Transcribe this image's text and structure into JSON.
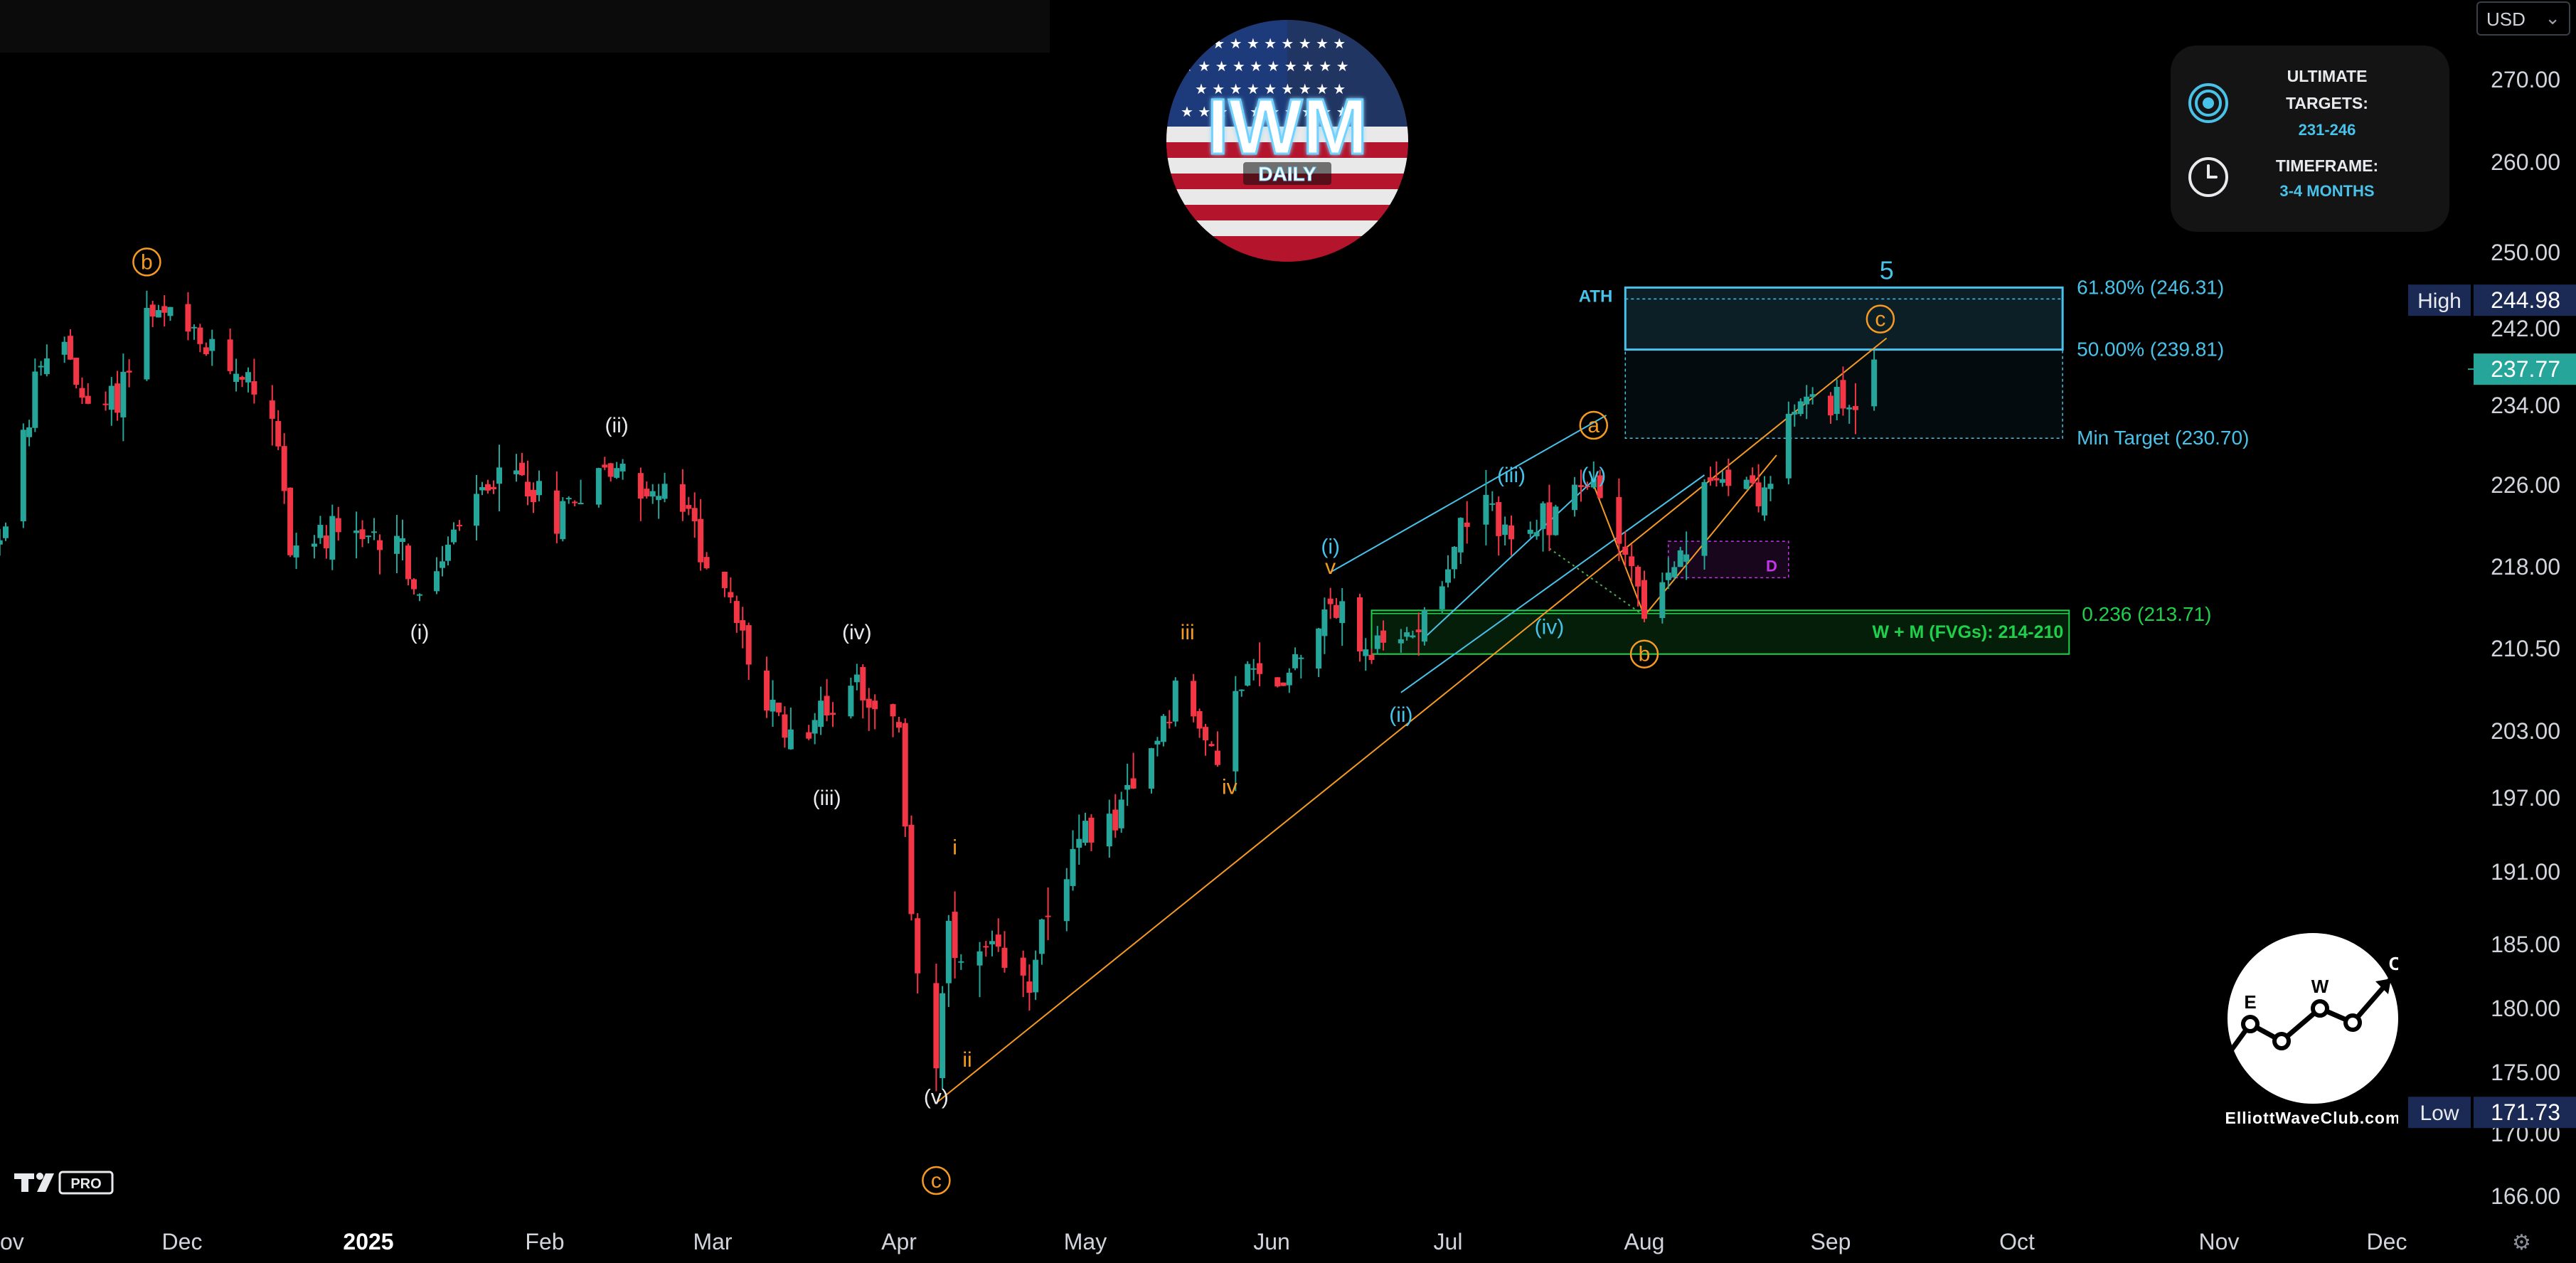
{
  "header": {
    "symbol": "IWM",
    "timeframe": "DAILY",
    "currency": "USD"
  },
  "info_card": {
    "targets_title_1": "ULTIMATE",
    "targets_title_2": "TARGETS:",
    "targets_value": "231-246",
    "timeframe_title": "TIMEFRAME:",
    "timeframe_value": "3-4 MONTHS",
    "target_icon": "bullseye-icon",
    "clock_icon": "clock-icon"
  },
  "brand": {
    "site": "ElliottWaveClub.com",
    "logo_letters": [
      "E",
      "W",
      "C"
    ],
    "platform": "PRO"
  },
  "price_markers": {
    "high_label": "High",
    "high_value": "244.98",
    "last_value": "237.77",
    "low_label": "Low",
    "low_value": "171.73"
  },
  "colors": {
    "up": "#26a69a",
    "down": "#f23645",
    "cyan": "#49c2ea",
    "orange": "#f59a23",
    "green": "#1fd14a",
    "magenta": "#c535e8",
    "high_bg": "#1b2a55",
    "last_bg": "#26a69a"
  },
  "chart_data": {
    "type": "candlestick",
    "x_range": [
      "2024-10-28",
      "2025-12-31"
    ],
    "ylim": [
      164,
      274
    ],
    "y_ticks": [
      "270.00",
      "260.00",
      "250.00",
      "242.00",
      "234.00",
      "226.00",
      "218.00",
      "210.50",
      "203.00",
      "197.00",
      "191.00",
      "185.00",
      "180.00",
      "175.00",
      "170.00",
      "166.00"
    ],
    "y_tick_values": [
      270.0,
      260.0,
      250.0,
      242.0,
      234.0,
      226.0,
      218.0,
      210.5,
      203.0,
      197.0,
      191.0,
      185.0,
      180.0,
      175.0,
      170.0,
      166.0
    ],
    "x_ticks": [
      {
        "label": "ov",
        "date": "2024-11-01"
      },
      {
        "label": "Dec",
        "date": "2024-12-01"
      },
      {
        "label": "2025",
        "date": "2025-01-01",
        "bold": true
      },
      {
        "label": "Feb",
        "date": "2025-02-01"
      },
      {
        "label": "Mar",
        "date": "2025-03-01"
      },
      {
        "label": "Apr",
        "date": "2025-04-01"
      },
      {
        "label": "May",
        "date": "2025-05-01"
      },
      {
        "label": "Jun",
        "date": "2025-06-01"
      },
      {
        "label": "Jul",
        "date": "2025-07-01"
      },
      {
        "label": "Aug",
        "date": "2025-08-01"
      },
      {
        "label": "Sep",
        "date": "2025-09-01"
      },
      {
        "label": "Oct",
        "date": "2025-10-01"
      },
      {
        "label": "Nov",
        "date": "2025-11-01"
      },
      {
        "label": "Dec",
        "date": "2025-12-01"
      }
    ],
    "price_path": [
      [
        "2024-10-28",
        219
      ],
      [
        "2024-11-01",
        222
      ],
      [
        "2024-11-06",
        236
      ],
      [
        "2024-11-11",
        241
      ],
      [
        "2024-11-15",
        233
      ],
      [
        "2024-11-20",
        235
      ],
      [
        "2024-11-25",
        243.5
      ],
      [
        "2024-11-29",
        243
      ],
      [
        "2024-12-04",
        240
      ],
      [
        "2024-12-10",
        238
      ],
      [
        "2024-12-16",
        234
      ],
      [
        "2024-12-19",
        220
      ],
      [
        "2024-12-24",
        221
      ],
      [
        "2024-12-31",
        220
      ],
      [
        "2025-01-06",
        222
      ],
      [
        "2025-01-10",
        214
      ],
      [
        "2025-01-15",
        220
      ],
      [
        "2025-01-22",
        226
      ],
      [
        "2025-01-28",
        227
      ],
      [
        "2025-02-03",
        223
      ],
      [
        "2025-02-07",
        226
      ],
      [
        "2025-02-13",
        228
      ],
      [
        "2025-02-19",
        225
      ],
      [
        "2025-02-24",
        224
      ],
      [
        "2025-02-28",
        219
      ],
      [
        "2025-03-05",
        213
      ],
      [
        "2025-03-10",
        205
      ],
      [
        "2025-03-14",
        203
      ],
      [
        "2025-03-20",
        205
      ],
      [
        "2025-03-25",
        208
      ],
      [
        "2025-03-28",
        206
      ],
      [
        "2025-04-01",
        202
      ],
      [
        "2025-04-03",
        188
      ],
      [
        "2025-04-04",
        183
      ],
      [
        "2025-04-07",
        176
      ],
      [
        "2025-04-09",
        185
      ],
      [
        "2025-04-11",
        183
      ],
      [
        "2025-04-15",
        184
      ],
      [
        "2025-04-21",
        181
      ],
      [
        "2025-04-25",
        189
      ],
      [
        "2025-05-02",
        194
      ],
      [
        "2025-05-09",
        197
      ],
      [
        "2025-05-13",
        203
      ],
      [
        "2025-05-16",
        207
      ],
      [
        "2025-05-22",
        201
      ],
      [
        "2025-05-28",
        208
      ],
      [
        "2025-06-02",
        207
      ],
      [
        "2025-06-06",
        211
      ],
      [
        "2025-06-11",
        215
      ],
      [
        "2025-06-17",
        210
      ],
      [
        "2025-06-23",
        211
      ],
      [
        "2025-06-30",
        217
      ],
      [
        "2025-07-03",
        222
      ],
      [
        "2025-07-08",
        223
      ],
      [
        "2025-07-14",
        220
      ],
      [
        "2025-07-18",
        224
      ],
      [
        "2025-07-24",
        226
      ],
      [
        "2025-07-28",
        222
      ],
      [
        "2025-08-01",
        214
      ],
      [
        "2025-08-06",
        217
      ],
      [
        "2025-08-12",
        226
      ],
      [
        "2025-08-15",
        228
      ],
      [
        "2025-08-21",
        225
      ],
      [
        "2025-08-25",
        232
      ],
      [
        "2025-08-29",
        235
      ],
      [
        "2025-09-03",
        234
      ],
      [
        "2025-09-08",
        237.77
      ]
    ],
    "target_zone": {
      "levels": [
        {
          "label": "61.80% (246.31)",
          "price": 246.31
        },
        {
          "label": "50.00% (239.81)",
          "price": 239.81
        },
        {
          "label": "Min Target (230.70)",
          "price": 230.7
        }
      ],
      "ath_label": "ATH",
      "wave_label": "5"
    },
    "support_zone": {
      "label": "W + M (FVGs): 214-210",
      "price_top": 214,
      "price_bottom": 210,
      "fib_label": "0.236 (213.71)"
    },
    "demand_box_label": "D",
    "wave_labels": [
      {
        "text": "b",
        "date": "2024-11-25",
        "price": 249,
        "color": "orange",
        "circle": true
      },
      {
        "text": "(i)",
        "date": "2025-01-10",
        "price": 212,
        "color": "white"
      },
      {
        "text": "(ii)",
        "date": "2025-02-13",
        "price": 232,
        "color": "white"
      },
      {
        "text": "(iii)",
        "date": "2025-03-20",
        "price": 197,
        "color": "white"
      },
      {
        "text": "(iv)",
        "date": "2025-03-25",
        "price": 212,
        "color": "white"
      },
      {
        "text": "(v)",
        "date": "2025-04-07",
        "price": 173,
        "color": "white"
      },
      {
        "text": "c",
        "date": "2025-04-07",
        "price": 167,
        "color": "orange",
        "circle": true
      },
      {
        "text": "i",
        "date": "2025-04-10",
        "price": 193,
        "color": "orange"
      },
      {
        "text": "ii",
        "date": "2025-04-12",
        "price": 176,
        "color": "orange"
      },
      {
        "text": "iii",
        "date": "2025-05-18",
        "price": 212,
        "color": "orange"
      },
      {
        "text": "iv",
        "date": "2025-05-25",
        "price": 198,
        "color": "orange"
      },
      {
        "text": "v",
        "date": "2025-06-11",
        "price": 218,
        "color": "orange"
      },
      {
        "text": "(i)",
        "date": "2025-06-11",
        "price": 220,
        "color": "cyan"
      },
      {
        "text": "(ii)",
        "date": "2025-06-23",
        "price": 204.5,
        "color": "cyan"
      },
      {
        "text": "(iii)",
        "date": "2025-07-11",
        "price": 227,
        "color": "cyan"
      },
      {
        "text": "(iv)",
        "date": "2025-07-17",
        "price": 212.5,
        "color": "cyan"
      },
      {
        "text": "(v)",
        "date": "2025-07-24",
        "price": 227,
        "color": "cyan"
      },
      {
        "text": "a",
        "date": "2025-07-24",
        "price": 232,
        "color": "orange",
        "circle": true
      },
      {
        "text": "b",
        "date": "2025-08-01",
        "price": 210,
        "color": "orange",
        "circle": true
      },
      {
        "text": "c",
        "date": "2025-09-09",
        "price": 243,
        "color": "orange",
        "circle": true
      }
    ]
  }
}
